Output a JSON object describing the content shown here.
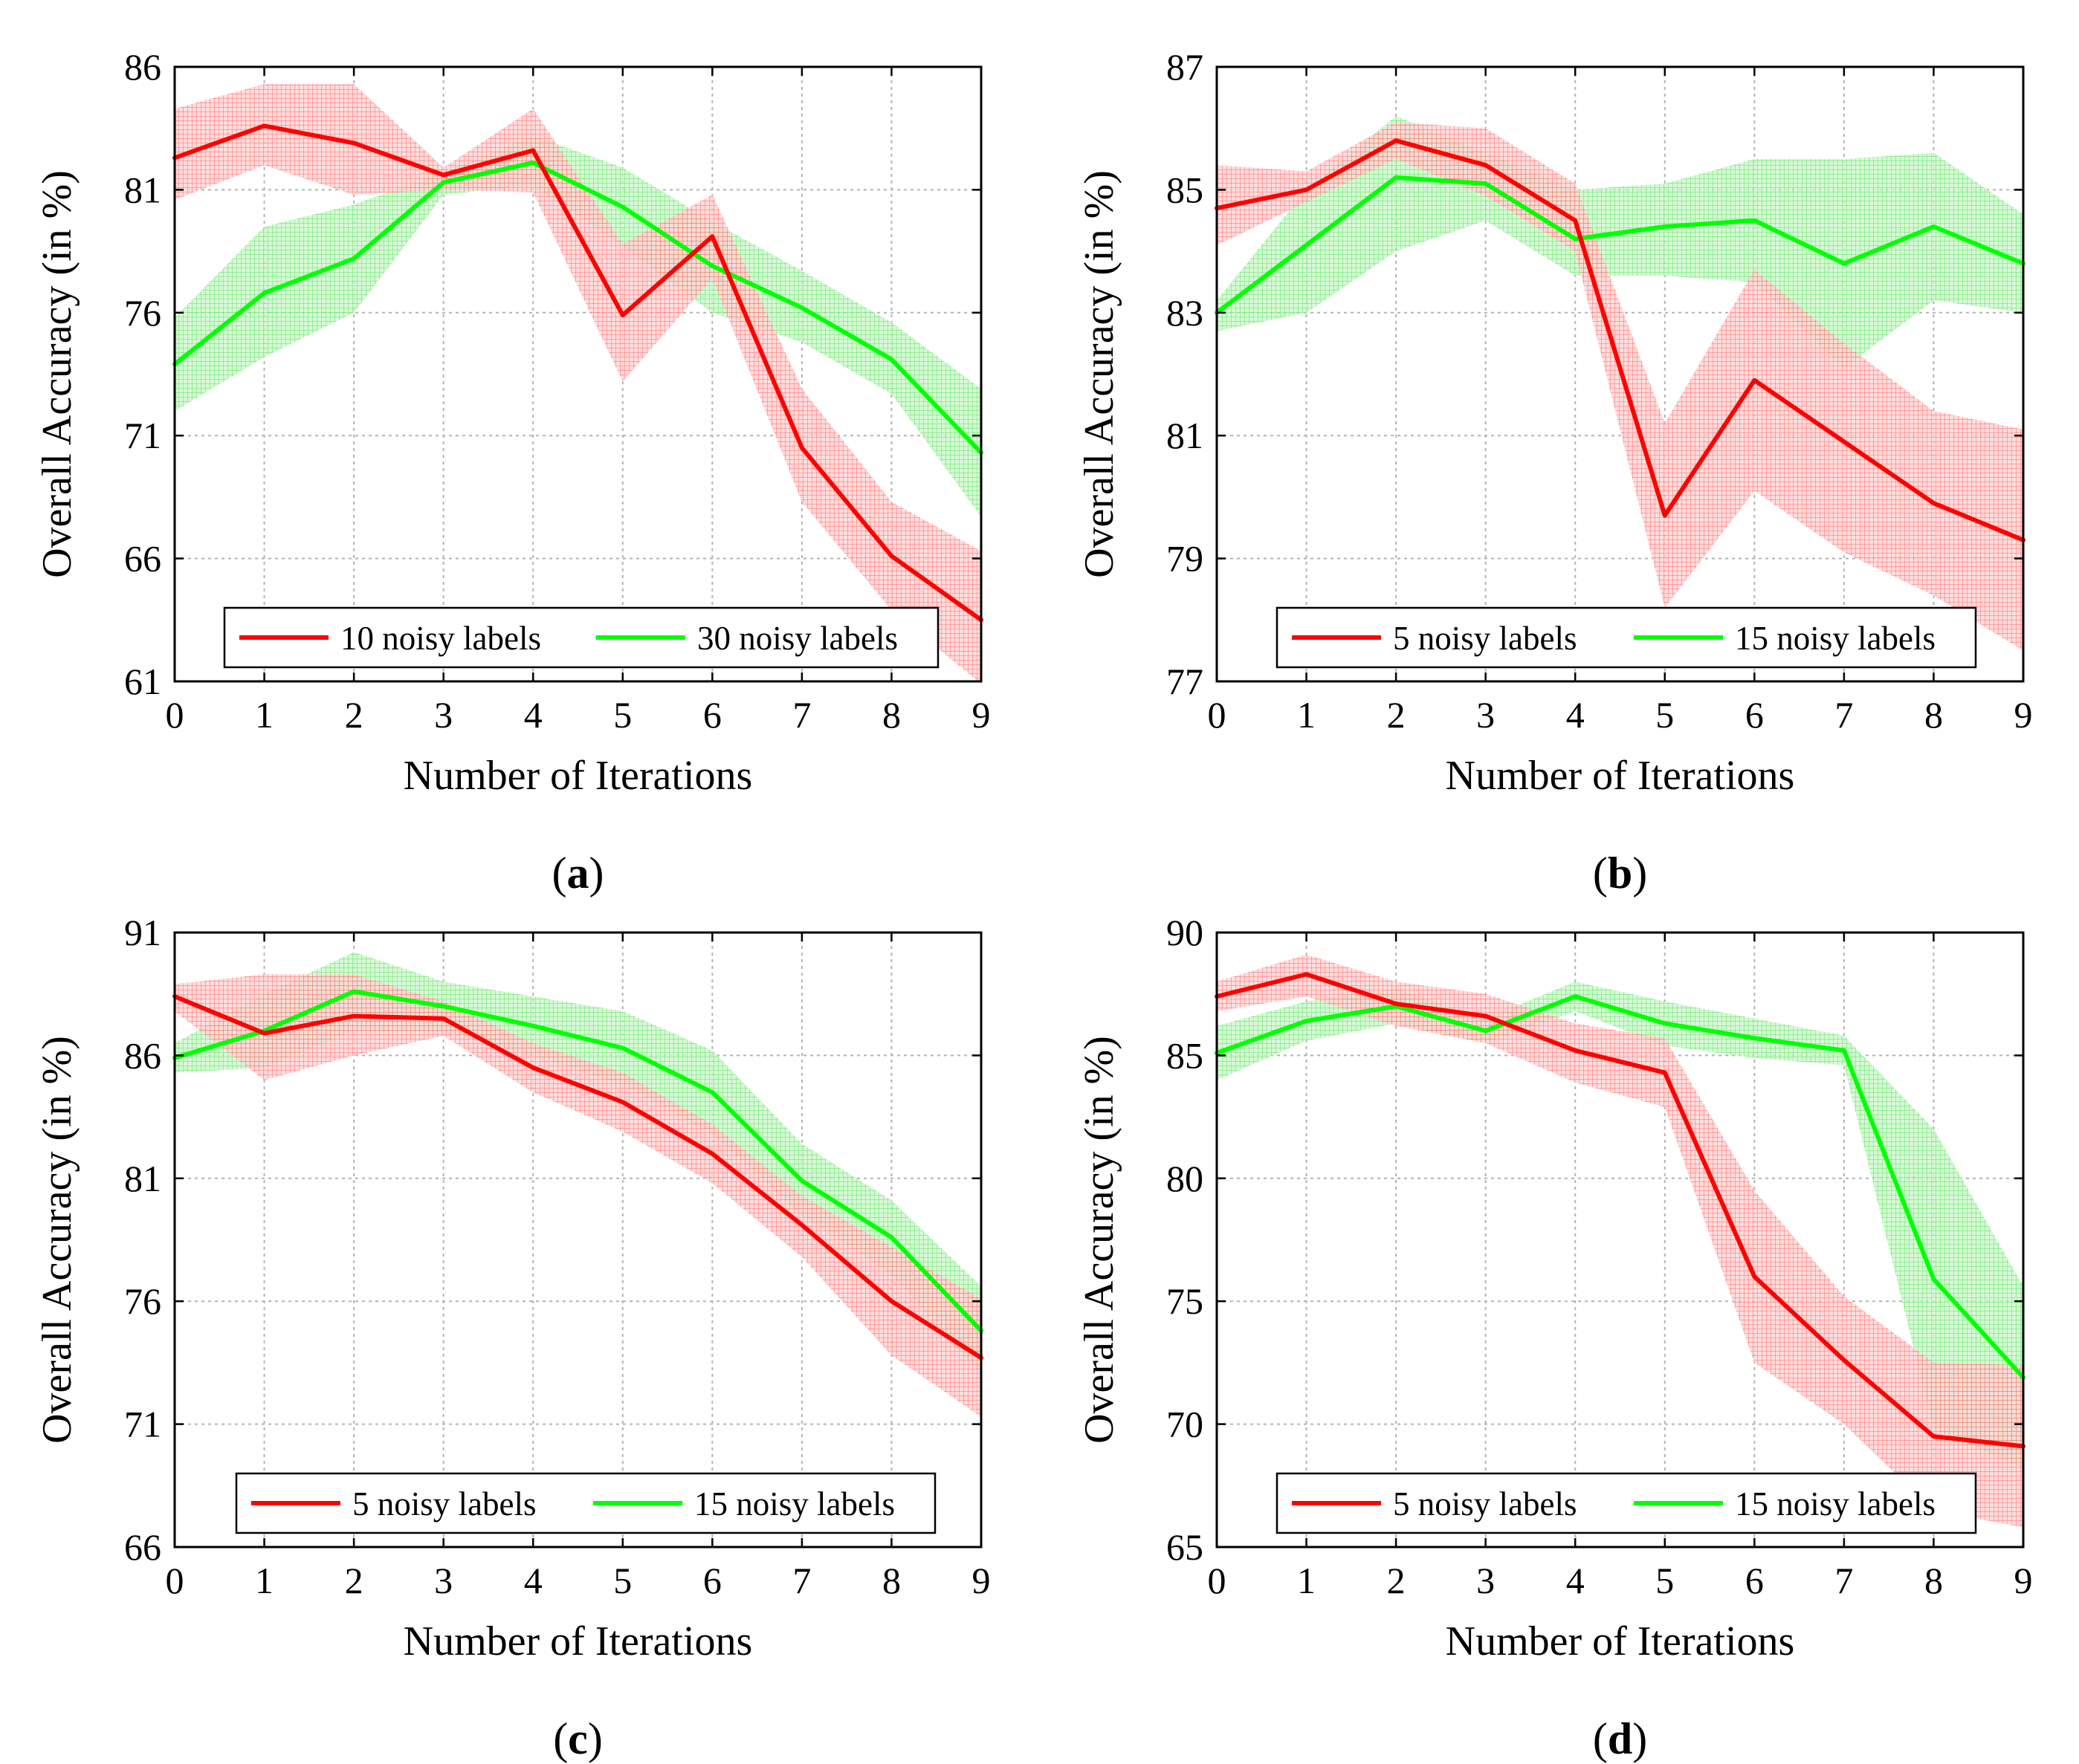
{
  "colors": {
    "red": "#ff0000",
    "green": "#00ff00",
    "red_band": "#ff7b7b",
    "green_band": "#7ff07f",
    "grid": "#b3b3b3",
    "axis": "#000000"
  },
  "chart_data": [
    {
      "type": "line",
      "panel_label": "a",
      "xlabel": "Number of Iterations",
      "ylabel": "Overall Accuracy (in %)",
      "x": [
        0,
        1,
        2,
        3,
        4,
        5,
        6,
        7,
        8,
        9
      ],
      "xlim": [
        0,
        9
      ],
      "ylim": [
        61,
        86
      ],
      "yticks": [
        61,
        66,
        71,
        76,
        81,
        86
      ],
      "grid": true,
      "legend_position": "bottom",
      "series": [
        {
          "name": "10 noisy labels",
          "color": "red",
          "values": [
            82.3,
            83.6,
            82.9,
            81.6,
            82.6,
            75.9,
            79.1,
            70.5,
            66.1,
            63.5
          ],
          "lower": [
            80.6,
            82.0,
            80.8,
            81.0,
            80.9,
            73.2,
            77.4,
            68.3,
            63.9,
            60.9
          ],
          "upper": [
            84.3,
            85.3,
            85.3,
            81.9,
            84.3,
            78.8,
            80.8,
            72.9,
            68.3,
            66.3
          ]
        },
        {
          "name": "30 noisy labels",
          "color": "green",
          "values": [
            73.9,
            76.8,
            78.2,
            81.3,
            82.1,
            80.3,
            77.9,
            76.2,
            74.1,
            70.3
          ],
          "lower": [
            72.0,
            74.2,
            76.0,
            80.8,
            81.2,
            78.7,
            76.0,
            74.8,
            72.7,
            67.7
          ],
          "upper": [
            75.8,
            79.5,
            80.4,
            81.7,
            83.2,
            81.9,
            79.7,
            77.7,
            75.6,
            72.9
          ]
        }
      ]
    },
    {
      "type": "line",
      "panel_label": "b",
      "xlabel": "Number of Iterations",
      "ylabel": "Overall Accuracy (in %)",
      "x": [
        0,
        1,
        2,
        3,
        4,
        5,
        6,
        7,
        8,
        9
      ],
      "xlim": [
        0,
        9
      ],
      "ylim": [
        77,
        87
      ],
      "yticks": [
        77,
        79,
        81,
        83,
        85,
        87
      ],
      "grid": true,
      "legend_position": "bottom",
      "series": [
        {
          "name": "5 noisy labels",
          "color": "red",
          "values": [
            84.7,
            85.0,
            85.8,
            85.4,
            84.5,
            79.7,
            81.9,
            80.9,
            79.9,
            79.3
          ],
          "lower": [
            84.1,
            84.8,
            85.5,
            84.9,
            84.0,
            78.2,
            80.1,
            79.1,
            78.4,
            77.5
          ],
          "upper": [
            85.4,
            85.3,
            86.1,
            86.0,
            85.1,
            81.2,
            83.7,
            82.5,
            81.4,
            81.1
          ]
        },
        {
          "name": "15 noisy labels",
          "color": "green",
          "values": [
            83.0,
            84.1,
            85.2,
            85.1,
            84.2,
            84.4,
            84.5,
            83.8,
            84.4,
            83.8
          ],
          "lower": [
            82.7,
            83.0,
            84.0,
            84.5,
            83.6,
            83.6,
            83.5,
            82.1,
            83.2,
            83.0
          ],
          "upper": [
            83.2,
            85.0,
            86.2,
            85.6,
            85.0,
            85.1,
            85.5,
            85.5,
            85.6,
            84.6
          ]
        }
      ]
    },
    {
      "type": "line",
      "panel_label": "c",
      "xlabel": "Number of Iterations",
      "ylabel": "Overall Accuracy (in %)",
      "x": [
        0,
        1,
        2,
        3,
        4,
        5,
        6,
        7,
        8,
        9
      ],
      "xlim": [
        0,
        9
      ],
      "ylim": [
        66,
        91
      ],
      "yticks": [
        66,
        71,
        76,
        81,
        86,
        91
      ],
      "grid": true,
      "legend_position": "bottom",
      "series": [
        {
          "name": "5 noisy labels",
          "color": "red",
          "values": [
            88.4,
            86.9,
            87.6,
            87.5,
            85.5,
            84.1,
            82.0,
            79.1,
            76.0,
            73.7
          ],
          "lower": [
            87.8,
            85.0,
            86.0,
            86.8,
            84.5,
            82.9,
            80.8,
            77.8,
            73.8,
            71.3
          ],
          "upper": [
            88.9,
            89.3,
            89.3,
            88.2,
            86.5,
            85.3,
            83.2,
            80.3,
            78.2,
            76.1
          ]
        },
        {
          "name": "15 noisy labels",
          "color": "green",
          "values": [
            85.9,
            87.0,
            88.6,
            88.0,
            87.2,
            86.3,
            84.5,
            80.9,
            78.6,
            74.8
          ],
          "lower": [
            85.3,
            85.5,
            87.0,
            87.0,
            86.0,
            84.8,
            82.8,
            79.5,
            77.1,
            73.0
          ],
          "upper": [
            86.5,
            88.5,
            90.2,
            89.0,
            88.4,
            87.8,
            86.2,
            82.4,
            80.1,
            76.6
          ]
        }
      ]
    },
    {
      "type": "line",
      "panel_label": "d",
      "xlabel": "Number of Iterations",
      "ylabel": "Overall Accuracy (in %)",
      "x": [
        0,
        1,
        2,
        3,
        4,
        5,
        6,
        7,
        8,
        9
      ],
      "xlim": [
        0,
        9
      ],
      "ylim": [
        65,
        90
      ],
      "yticks": [
        65,
        70,
        75,
        80,
        85,
        90
      ],
      "grid": true,
      "legend_position": "bottom",
      "series": [
        {
          "name": "5 noisy labels",
          "color": "red",
          "values": [
            87.4,
            88.3,
            87.1,
            86.6,
            85.2,
            84.3,
            76.0,
            72.6,
            69.5,
            69.1
          ],
          "lower": [
            86.8,
            87.4,
            86.2,
            85.5,
            83.9,
            82.9,
            72.5,
            70.0,
            66.5,
            65.8
          ],
          "upper": [
            88.0,
            89.1,
            88.0,
            87.5,
            86.3,
            85.7,
            79.5,
            75.2,
            72.5,
            72.4
          ]
        },
        {
          "name": "15 noisy labels",
          "color": "green",
          "values": [
            85.1,
            86.4,
            87.0,
            86.0,
            87.4,
            86.3,
            85.7,
            85.2,
            75.9,
            71.9
          ],
          "lower": [
            84.0,
            85.6,
            86.3,
            85.5,
            86.8,
            85.4,
            84.9,
            84.6,
            69.8,
            68.2
          ],
          "upper": [
            86.2,
            87.2,
            87.7,
            86.5,
            88.0,
            87.2,
            86.5,
            85.8,
            82.0,
            75.6
          ]
        }
      ]
    }
  ]
}
